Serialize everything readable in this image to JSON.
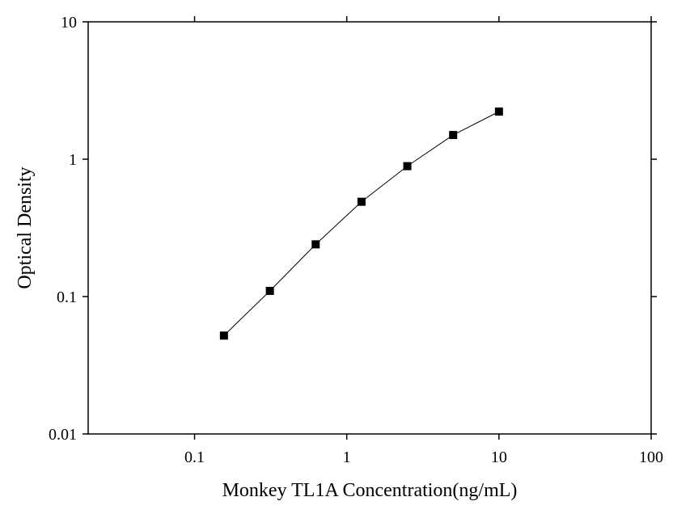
{
  "chart_data": {
    "type": "scatter-line",
    "x_label": "Monkey TL1A Concentration(ng/mL)",
    "y_label": "Optical Density",
    "x": [
      0.156,
      0.3125,
      0.625,
      1.25,
      2.5,
      5,
      10
    ],
    "values": [
      0.052,
      0.11,
      0.24,
      0.49,
      0.89,
      1.5,
      2.22
    ],
    "color": "#000000",
    "x_log": true,
    "y_log": true,
    "xlim": [
      0.02,
      100
    ],
    "ylim": [
      0.01,
      10
    ],
    "xticks": [
      0.1,
      1,
      10,
      100
    ],
    "yticks": [
      0.01,
      0.1,
      1,
      10
    ],
    "grid": false
  }
}
